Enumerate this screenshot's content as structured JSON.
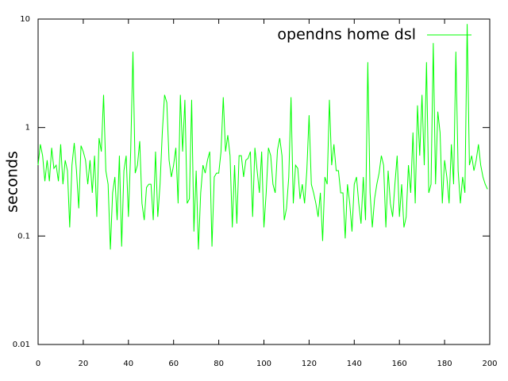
{
  "chart_data": {
    "type": "line",
    "y_label": "seconds",
    "log_scale_y": true,
    "grid": false,
    "legend_position": "top-right",
    "xlim": [
      0,
      200
    ],
    "xticks": [
      0,
      20,
      40,
      60,
      80,
      100,
      120,
      140,
      160,
      180,
      200
    ],
    "ylim": [
      0.01,
      10
    ],
    "yticks": [
      0.01,
      0.1,
      1,
      10
    ],
    "x": [
      0,
      1,
      2,
      3,
      4,
      5,
      6,
      7,
      8,
      9,
      10,
      11,
      12,
      13,
      14,
      15,
      16,
      17,
      18,
      19,
      20,
      21,
      22,
      23,
      24,
      25,
      26,
      27,
      28,
      29,
      30,
      31,
      32,
      33,
      34,
      35,
      36,
      37,
      38,
      39,
      40,
      41,
      42,
      43,
      44,
      45,
      46,
      47,
      48,
      49,
      50,
      51,
      52,
      53,
      54,
      55,
      56,
      57,
      58,
      59,
      60,
      61,
      62,
      63,
      64,
      65,
      66,
      67,
      68,
      69,
      70,
      71,
      72,
      73,
      74,
      75,
      76,
      77,
      78,
      79,
      80,
      81,
      82,
      83,
      84,
      85,
      86,
      87,
      88,
      89,
      90,
      91,
      92,
      93,
      94,
      95,
      96,
      97,
      98,
      99,
      100,
      101,
      102,
      103,
      104,
      105,
      106,
      107,
      108,
      109,
      110,
      111,
      112,
      113,
      114,
      115,
      116,
      117,
      118,
      119,
      120,
      121,
      122,
      123,
      124,
      125,
      126,
      127,
      128,
      129,
      130,
      131,
      132,
      133,
      134,
      135,
      136,
      137,
      138,
      139,
      140,
      141,
      142,
      143,
      144,
      145,
      146,
      147,
      148,
      149,
      150,
      151,
      152,
      153,
      154,
      155,
      156,
      157,
      158,
      159,
      160,
      161,
      162,
      163,
      164,
      165,
      166,
      167,
      168,
      169,
      170,
      171,
      172,
      173,
      174,
      175,
      176,
      177,
      178,
      179,
      180,
      181,
      182,
      183,
      184,
      185,
      186,
      187,
      188,
      189,
      190,
      191,
      192,
      193,
      194,
      195,
      196,
      197,
      198,
      199
    ],
    "series": [
      {
        "name": "opendns home dsl",
        "color": "#00ff00",
        "values": [
          0.45,
          0.7,
          0.55,
          0.32,
          0.5,
          0.32,
          0.65,
          0.42,
          0.45,
          0.32,
          0.7,
          0.3,
          0.5,
          0.4,
          0.12,
          0.45,
          0.72,
          0.4,
          0.18,
          0.68,
          0.6,
          0.5,
          0.3,
          0.5,
          0.25,
          0.55,
          0.15,
          0.8,
          0.6,
          2.0,
          0.4,
          0.3,
          0.075,
          0.25,
          0.35,
          0.14,
          0.55,
          0.08,
          0.4,
          0.55,
          0.15,
          0.6,
          5.0,
          0.38,
          0.45,
          0.75,
          0.2,
          0.14,
          0.28,
          0.3,
          0.3,
          0.14,
          0.6,
          0.15,
          0.3,
          0.9,
          2.0,
          1.7,
          0.5,
          0.35,
          0.45,
          0.65,
          0.2,
          2.0,
          0.6,
          1.8,
          0.2,
          0.22,
          1.8,
          0.11,
          0.4,
          0.075,
          0.25,
          0.45,
          0.38,
          0.5,
          0.6,
          0.08,
          0.35,
          0.38,
          0.38,
          0.6,
          1.9,
          0.6,
          0.85,
          0.55,
          0.12,
          0.45,
          0.13,
          0.55,
          0.55,
          0.35,
          0.5,
          0.52,
          0.6,
          0.15,
          0.65,
          0.4,
          0.25,
          0.6,
          0.12,
          0.25,
          0.65,
          0.55,
          0.3,
          0.25,
          0.62,
          0.8,
          0.55,
          0.14,
          0.18,
          0.35,
          1.9,
          0.2,
          0.45,
          0.42,
          0.22,
          0.3,
          0.2,
          0.4,
          1.3,
          0.3,
          0.25,
          0.2,
          0.15,
          0.25,
          0.09,
          0.35,
          0.3,
          1.8,
          0.45,
          0.7,
          0.4,
          0.4,
          0.25,
          0.25,
          0.095,
          0.3,
          0.2,
          0.11,
          0.3,
          0.35,
          0.2,
          0.13,
          0.35,
          0.14,
          4.0,
          0.25,
          0.12,
          0.22,
          0.3,
          0.38,
          0.55,
          0.45,
          0.12,
          0.4,
          0.2,
          0.15,
          0.3,
          0.55,
          0.15,
          0.3,
          0.12,
          0.15,
          0.45,
          0.25,
          0.9,
          0.2,
          1.6,
          0.55,
          2.0,
          0.45,
          4.0,
          0.25,
          0.3,
          6.0,
          0.3,
          1.4,
          0.9,
          0.2,
          0.5,
          0.35,
          0.2,
          0.7,
          0.3,
          5.0,
          0.4,
          0.2,
          0.35,
          0.25,
          9.0,
          0.45,
          0.55,
          0.4,
          0.5,
          0.7,
          0.45,
          0.35,
          0.3,
          0.27
        ]
      }
    ]
  }
}
